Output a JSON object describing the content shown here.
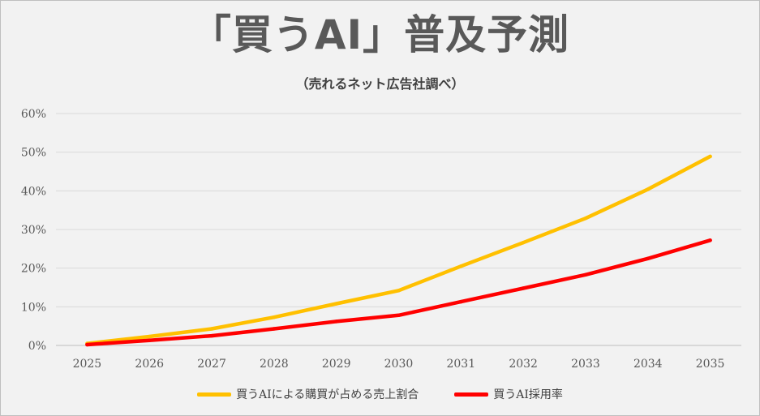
{
  "title": "「買うAI」普及予測",
  "subtitle": "（売れるネット広告社調べ）",
  "chart_data": {
    "type": "line",
    "categories": [
      "2025",
      "2026",
      "2027",
      "2028",
      "2029",
      "2030",
      "2031",
      "2032",
      "2033",
      "2034",
      "2035"
    ],
    "series": [
      {
        "name": "買うAIによる購買が占める売上割合",
        "color": "#ffc000",
        "values": [
          0.5,
          2.3,
          4.3,
          7.3,
          10.8,
          14.2,
          20.5,
          26.6,
          32.9,
          40.4,
          48.9
        ]
      },
      {
        "name": "買うAI採用率",
        "color": "#ff0000",
        "values": [
          0.2,
          1.3,
          2.5,
          4.3,
          6.2,
          7.8,
          11.3,
          14.8,
          18.3,
          22.5,
          27.2
        ]
      }
    ],
    "y_ticks": [
      "0%",
      "10%",
      "20%",
      "30%",
      "40%",
      "50%",
      "60%"
    ],
    "ylim": [
      0,
      60
    ],
    "grid": true,
    "legend_position": "bottom"
  }
}
